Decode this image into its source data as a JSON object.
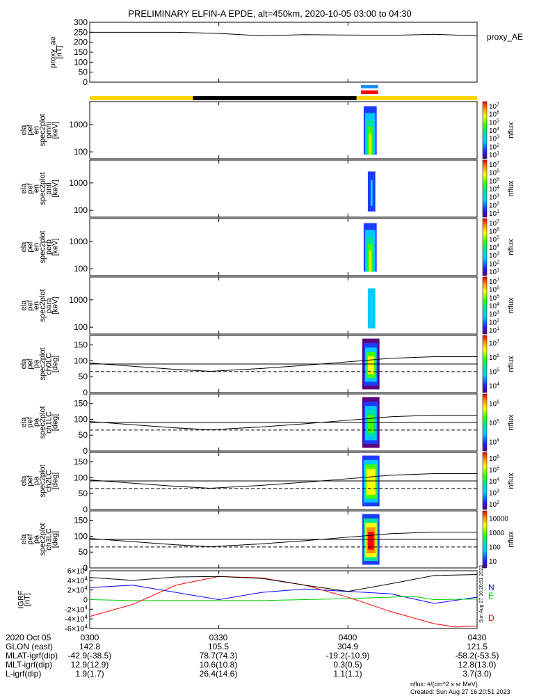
{
  "chart_data": {
    "type": "line",
    "title": "PRELIMINARY ELFIN-A EPDE, alt=450km, 2020-10-05 03:00 to 04:30",
    "time_range": [
      "03:00",
      "04:30"
    ],
    "x_ticks": [
      "0300",
      "0330",
      "0400",
      "0430"
    ],
    "ae_panel": {
      "ylabel": "proxy_ae [nT]",
      "legend": "proxy_AE",
      "yticks": [
        "0",
        "50",
        "100",
        "150",
        "200",
        "250",
        "300"
      ],
      "ylim": [
        0,
        300
      ],
      "series": {
        "x": [
          "03:00",
          "03:10",
          "03:20",
          "03:30",
          "03:40",
          "03:50",
          "04:00",
          "04:10",
          "04:20",
          "04:30"
        ],
        "values": [
          250,
          250,
          250,
          244,
          232,
          238,
          236,
          234,
          240,
          232
        ]
      }
    },
    "status_bar": {
      "segments": [
        {
          "start": "03:00",
          "end": "03:24",
          "color": "#ffd700"
        },
        {
          "start": "03:24",
          "end": "04:02",
          "color": "#000000"
        },
        {
          "start": "04:02",
          "end": "04:30",
          "color": "#ffd700"
        }
      ],
      "marker_bars": [
        {
          "start": "04:03",
          "end": "04:07",
          "color": "#1e90ff"
        },
        {
          "start": "04:03",
          "end": "04:07",
          "color": "#ff0000"
        }
      ]
    },
    "spectrogram_panels": [
      {
        "labels": [
          "ela",
          "pef",
          "en",
          "spec2plot",
          "omni",
          "[keV]"
        ],
        "yticks": [
          "100",
          "1000"
        ],
        "colorbar_ticks": [
          "10^1",
          "10^2",
          "10^3",
          "10^4",
          "10^5",
          "10^6",
          "10^7"
        ],
        "colorbar_label": "nflux"
      },
      {
        "labels": [
          "ela",
          "pef",
          "en",
          "spec2plot",
          "anti",
          "[keV]"
        ],
        "yticks": [
          "100",
          "1000"
        ],
        "colorbar_ticks": [
          "10^1",
          "10^2",
          "10^3",
          "10^4",
          "10^5",
          "10^6",
          "10^7"
        ],
        "colorbar_label": "nflux"
      },
      {
        "labels": [
          "ela",
          "pef",
          "en",
          "spec2plot",
          "perp",
          "[keV]"
        ],
        "yticks": [
          "100",
          "1000"
        ],
        "colorbar_ticks": [
          "10^1",
          "10^2",
          "10^3",
          "10^4",
          "10^5",
          "10^6",
          "10^7"
        ],
        "colorbar_label": "nflux"
      },
      {
        "labels": [
          "ela",
          "pef",
          "en",
          "spec2plot",
          "para",
          "[keV]"
        ],
        "yticks": [
          "100",
          "1000"
        ],
        "colorbar_ticks": [
          "10^1",
          "10^2",
          "10^3",
          "10^4",
          "10^5",
          "10^6",
          "10^7"
        ],
        "colorbar_label": "nflux"
      }
    ],
    "pitch_panels": [
      {
        "labels": [
          "ela",
          "pef",
          "pa",
          "spec2plot",
          "ch0LC",
          "[deg]"
        ],
        "yticks": [
          "0",
          "50",
          "100",
          "150"
        ],
        "colorbar_ticks": [
          "10^4",
          "10^5",
          "10^6",
          "10^7"
        ],
        "colorbar_label": "nflux"
      },
      {
        "labels": [
          "ela",
          "pef",
          "pa",
          "spec2plot",
          "ch1LC",
          "[deg]"
        ],
        "yticks": [
          "0",
          "50",
          "100",
          "150"
        ],
        "colorbar_ticks": [
          "10^4",
          "10^5",
          "10^6"
        ],
        "colorbar_label": "nflux"
      },
      {
        "labels": [
          "ela",
          "pef",
          "pa",
          "spec2plot",
          "ch2LC",
          "[deg]"
        ],
        "yticks": [
          "0",
          "50",
          "100",
          "150"
        ],
        "colorbar_ticks": [
          "10^2",
          "10^3",
          "10^4",
          "10^5",
          "10^6"
        ],
        "colorbar_label": "nflux"
      },
      {
        "labels": [
          "ela",
          "pef",
          "pa",
          "spec2plot",
          "ch3LC",
          "[deg]"
        ],
        "yticks": [
          "0",
          "50",
          "100",
          "150"
        ],
        "colorbar_ticks": [
          "10",
          "100",
          "1000",
          "10000"
        ],
        "colorbar_label": "nflux"
      }
    ],
    "pitch_lines": {
      "x": [
        "03:00",
        "03:10",
        "03:20",
        "03:28",
        "03:40",
        "03:50",
        "04:00",
        "04:10",
        "04:20",
        "04:30"
      ],
      "loss_cone": [
        93,
        83,
        73,
        67,
        76,
        86,
        97,
        108,
        113,
        113
      ],
      "reference": [
        90,
        90,
        90,
        90,
        90,
        90,
        90,
        90,
        90,
        90
      ],
      "anti_loss_cone": [
        66,
        66,
        66,
        66,
        66,
        66,
        66,
        66,
        66,
        66
      ]
    },
    "igrf_panel": {
      "ylabel": "IGRF [nT]",
      "yticks": [
        "-6×10^4",
        "-4×10^4",
        "-2×10^4",
        "0",
        "2×10^4",
        "4×10^4",
        "6×10^4"
      ],
      "ylim": [
        -60000,
        60000
      ],
      "series": [
        {
          "name": "N",
          "color": "#0000ff",
          "x": [
            "03:00",
            "03:10",
            "03:20",
            "03:30",
            "03:40",
            "03:50",
            "04:00",
            "04:10",
            "04:15",
            "04:20",
            "04:30"
          ],
          "values": [
            25000,
            30000,
            15000,
            0,
            15000,
            22000,
            17000,
            12000,
            2000,
            -8000,
            5000
          ]
        },
        {
          "name": "E",
          "color": "#00cc00",
          "x": [
            "03:00",
            "03:10",
            "03:20",
            "03:30",
            "03:40",
            "03:50",
            "04:00",
            "04:10",
            "04:15",
            "04:20",
            "04:30"
          ],
          "values": [
            0,
            -2000,
            -2000,
            -2000,
            -2000,
            0,
            2000,
            5000,
            7000,
            0,
            1000
          ]
        },
        {
          "name": "D",
          "color": "#ff0000",
          "x": [
            "03:00",
            "03:10",
            "03:20",
            "03:30",
            "03:40",
            "03:50",
            "04:00",
            "04:10",
            "04:20",
            "04:25",
            "04:30"
          ],
          "values": [
            -35000,
            -10000,
            30000,
            48000,
            45000,
            30000,
            5000,
            -25000,
            -50000,
            -57000,
            -55000
          ]
        },
        {
          "name": "",
          "color": "#000000",
          "x": [
            "03:00",
            "03:10",
            "03:20",
            "03:30",
            "03:40",
            "03:50",
            "04:00",
            "04:10",
            "04:20",
            "04:30"
          ],
          "values": [
            46000,
            40000,
            47000,
            48000,
            44000,
            30000,
            17000,
            33000,
            50000,
            52000
          ]
        }
      ]
    },
    "colorbar_caption": "Sun Aug 27 16:20:51 2023",
    "ephemeris": {
      "date_label": "2020 Oct 05",
      "rows": [
        {
          "label": "GLON (east)",
          "values": [
            "142.8",
            "105.5",
            "304.9",
            "121.5"
          ]
        },
        {
          "label": "MLAT-igrf(dip)",
          "values": [
            "-42.9(-38.5)",
            "78.7(74.3)",
            "-19.2(-10.9)",
            "-58.2(-53.5)"
          ]
        },
        {
          "label": "MLT-igrf(dip)",
          "values": [
            "12.9(12.9)",
            "10.6(10.8)",
            "0.3(0.5)",
            "12.8(13.0)"
          ]
        },
        {
          "label": "L-igrf(dip)",
          "values": [
            "1.9(1.7)",
            "26.4(14.6)",
            "1.1(1.1)",
            "3.7(3.0)"
          ]
        }
      ]
    },
    "footer": {
      "units": "nflux: #/(cm^2 s sr MeV)",
      "created": "Created: Sun Aug 27 16:20:51 2023"
    }
  }
}
